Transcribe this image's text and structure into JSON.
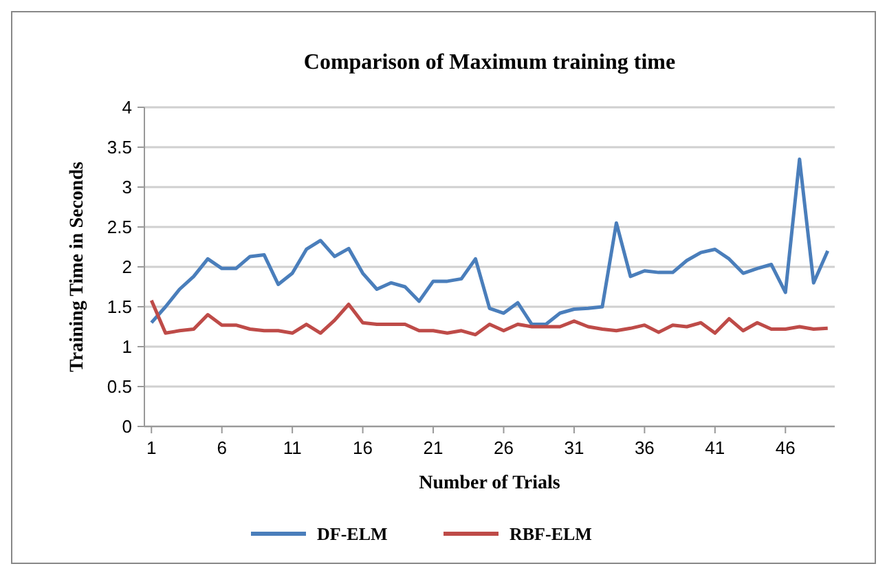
{
  "chart_data": {
    "type": "line",
    "title": "Comparison of Maximum training time",
    "xlabel": "Number of Trials",
    "ylabel": "Training  Time in Seconds",
    "x": [
      1,
      2,
      3,
      4,
      5,
      6,
      7,
      8,
      9,
      10,
      11,
      12,
      13,
      14,
      15,
      16,
      17,
      18,
      19,
      20,
      21,
      22,
      23,
      24,
      25,
      26,
      27,
      28,
      29,
      30,
      31,
      32,
      33,
      34,
      35,
      36,
      37,
      38,
      39,
      40,
      41,
      42,
      43,
      44,
      45,
      46,
      47,
      48,
      49
    ],
    "series": [
      {
        "name": "DF-ELM",
        "color": "#4a7ebb",
        "values": [
          1.3,
          1.5,
          1.72,
          1.88,
          2.1,
          1.98,
          1.98,
          2.13,
          2.15,
          1.78,
          1.92,
          2.22,
          2.33,
          2.13,
          2.23,
          1.92,
          1.72,
          1.8,
          1.75,
          1.57,
          1.82,
          1.82,
          1.85,
          2.1,
          1.48,
          1.42,
          1.55,
          1.28,
          1.28,
          1.42,
          1.47,
          1.48,
          1.5,
          2.55,
          1.88,
          1.95,
          1.93,
          1.93,
          2.08,
          2.18,
          2.22,
          2.1,
          1.92,
          1.98,
          2.03,
          1.68,
          3.35,
          1.8,
          2.2
        ]
      },
      {
        "name": "RBF-ELM",
        "color": "#be4b48",
        "values": [
          1.58,
          1.17,
          1.2,
          1.22,
          1.4,
          1.27,
          1.27,
          1.22,
          1.2,
          1.2,
          1.17,
          1.28,
          1.17,
          1.33,
          1.53,
          1.3,
          1.28,
          1.28,
          1.28,
          1.2,
          1.2,
          1.17,
          1.2,
          1.15,
          1.28,
          1.2,
          1.28,
          1.25,
          1.25,
          1.25,
          1.32,
          1.25,
          1.22,
          1.2,
          1.23,
          1.27,
          1.18,
          1.27,
          1.25,
          1.3,
          1.17,
          1.35,
          1.2,
          1.3,
          1.22,
          1.22,
          1.25,
          1.22,
          1.23
        ]
      }
    ],
    "xlim": [
      0.5,
      49.5
    ],
    "xticks": [
      1,
      6,
      11,
      16,
      21,
      26,
      31,
      36,
      41,
      46
    ],
    "ylim": [
      0,
      4
    ],
    "yticks": [
      0,
      0.5,
      1,
      1.5,
      2,
      2.5,
      3,
      3.5,
      4
    ],
    "grid": "y",
    "legend": "bottom",
    "marker": "none",
    "line_style": "solid"
  }
}
